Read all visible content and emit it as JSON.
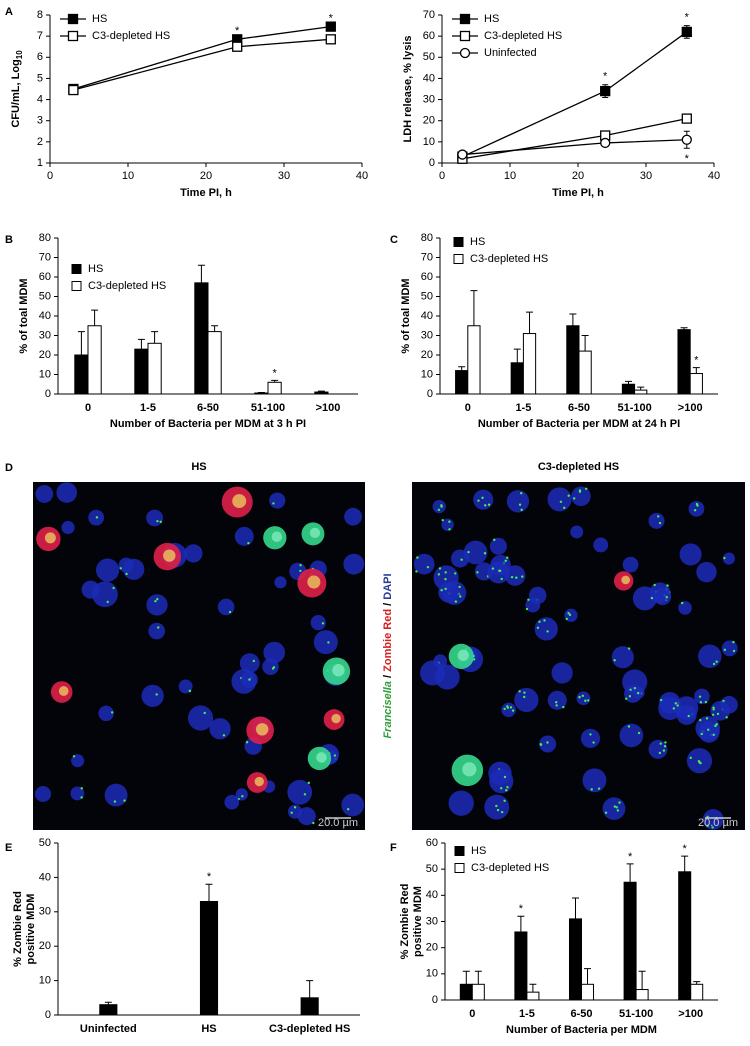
{
  "chart_data": [
    {
      "type": "line",
      "label": "A",
      "xlabel": "Time PI, h",
      "ylabel": "CFU/mL, Log",
      "ylabel_subscript": "10",
      "x": [
        3,
        24,
        36
      ],
      "xlim": [
        0,
        40
      ],
      "xticks": [
        0,
        10,
        20,
        30,
        40
      ],
      "ylim": [
        1,
        8
      ],
      "yticks": [
        1,
        2,
        3,
        4,
        5,
        6,
        7,
        8
      ],
      "legend": "upper left",
      "series": [
        {
          "name": "HS",
          "color": "#000000",
          "fill": "#000000",
          "marker": "square",
          "values": [
            4.5,
            6.85,
            7.45
          ],
          "annotations": [
            null,
            "*",
            "*"
          ]
        },
        {
          "name": "C3-depleted HS",
          "color": "#000000",
          "fill": "#ffffff",
          "marker": "square",
          "values": [
            4.45,
            6.5,
            6.85
          ]
        }
      ]
    },
    {
      "type": "line",
      "xlabel": "Time PI, h",
      "ylabel": "LDH release, % lysis",
      "x": [
        3,
        24,
        36
      ],
      "xlim": [
        0,
        40
      ],
      "xticks": [
        0,
        10,
        20,
        30,
        40
      ],
      "ylim": [
        0,
        70
      ],
      "yticks": [
        0,
        10,
        20,
        30,
        40,
        50,
        60,
        70
      ],
      "legend": "upper left",
      "series": [
        {
          "name": "HS",
          "color": "#000000",
          "fill": "#000000",
          "marker": "square",
          "values": [
            3,
            34,
            62
          ],
          "errors": [
            1,
            3,
            3
          ],
          "annotations": [
            null,
            "*",
            "*"
          ]
        },
        {
          "name": "C3-depleted HS",
          "color": "#000000",
          "fill": "#ffffff",
          "marker": "square",
          "values": [
            2,
            13,
            21
          ],
          "errors": [
            0.5,
            1.5,
            1
          ]
        },
        {
          "name": "Uninfected",
          "color": "#000000",
          "fill": "#ffffff",
          "marker": "circle",
          "values": [
            4,
            9.5,
            11
          ],
          "errors": [
            1.5,
            1,
            4
          ],
          "annotations": [
            null,
            null,
            "*"
          ]
        }
      ]
    },
    {
      "type": "bar",
      "label": "B",
      "xlabel": "Number of Bacteria per MDM at 3 h PI",
      "ylabel": "% of toal MDM",
      "categories": [
        "0",
        "1-5",
        "6-50",
        "51-100",
        ">100"
      ],
      "ylim": [
        0,
        80
      ],
      "yticks": [
        0,
        10,
        20,
        30,
        40,
        50,
        60,
        70,
        80
      ],
      "legend": "upper left",
      "series": [
        {
          "name": "HS",
          "color": "#000000",
          "fill": "#000000",
          "values": [
            20,
            23,
            57,
            0.5,
            1
          ],
          "errors": [
            12,
            5,
            9,
            0.3,
            0.5
          ]
        },
        {
          "name": "C3-depleted HS",
          "color": "#000000",
          "fill": "#ffffff",
          "values": [
            35,
            26,
            32,
            6,
            0
          ],
          "errors": [
            8,
            6,
            3,
            1,
            0
          ],
          "annotations": [
            null,
            null,
            null,
            "*",
            null
          ]
        }
      ]
    },
    {
      "type": "bar",
      "label": "C",
      "xlabel": "Number of Bacteria per MDM at 24 h PI",
      "ylabel": "% of toal MDM",
      "categories": [
        "0",
        "1-5",
        "6-50",
        "51-100",
        ">100"
      ],
      "ylim": [
        0,
        80
      ],
      "yticks": [
        0,
        10,
        20,
        30,
        40,
        50,
        60,
        70,
        80
      ],
      "legend": "upper left",
      "series": [
        {
          "name": "HS",
          "color": "#000000",
          "fill": "#000000",
          "values": [
            12,
            16,
            35,
            5,
            33
          ],
          "errors": [
            2,
            7,
            6,
            1.5,
            1
          ]
        },
        {
          "name": "C3-depleted HS",
          "color": "#000000",
          "fill": "#ffffff",
          "values": [
            35,
            31,
            22,
            2,
            10.5
          ],
          "errors": [
            18,
            11,
            8,
            1.5,
            3
          ],
          "annotations": [
            null,
            null,
            null,
            null,
            "*"
          ]
        }
      ]
    },
    {
      "type": "image",
      "label": "D",
      "panels": [
        {
          "title": "HS"
        },
        {
          "title": "C3-depleted HS"
        }
      ],
      "stain_label": [
        {
          "text": "Francisella",
          "color": "#2e9e3a"
        },
        {
          "text": "/",
          "color": "#000000"
        },
        {
          "text": "Zombie Red",
          "color": "#d42020"
        },
        {
          "text": "/",
          "color": "#000000"
        },
        {
          "text": "DAPI",
          "color": "#2a3a9a"
        }
      ],
      "scale_bar": "20.0 µm"
    },
    {
      "type": "bar",
      "label": "E",
      "ylabel": [
        "% Zombie Red",
        "positive MDM"
      ],
      "categories": [
        "Uninfected",
        "HS",
        "C3-depleted HS"
      ],
      "ylim": [
        0,
        50
      ],
      "yticks": [
        0,
        10,
        20,
        30,
        40,
        50
      ],
      "series": [
        {
          "color": "#000000",
          "fill": "#000000",
          "values": [
            3,
            33,
            5
          ],
          "errors": [
            0.7,
            5,
            5
          ],
          "annotations": [
            null,
            "*",
            null
          ]
        }
      ]
    },
    {
      "type": "bar",
      "label": "F",
      "xlabel": "Number of Bacteria per MDM",
      "ylabel": [
        "% Zombie Red",
        "positive MDM"
      ],
      "categories": [
        "0",
        "1-5",
        "6-50",
        "51-100",
        ">100"
      ],
      "ylim": [
        0,
        60
      ],
      "yticks": [
        0,
        10,
        20,
        30,
        40,
        50,
        60
      ],
      "legend": "upper left",
      "series": [
        {
          "name": "HS",
          "color": "#000000",
          "fill": "#000000",
          "values": [
            6,
            26,
            31,
            45,
            49
          ],
          "errors": [
            5,
            6,
            8,
            7,
            6
          ],
          "annotations": [
            null,
            "*",
            null,
            "*",
            "*"
          ]
        },
        {
          "name": "C3-depleted HS",
          "color": "#000000",
          "fill": "#ffffff",
          "values": [
            6,
            3,
            6,
            4,
            6
          ],
          "errors": [
            5,
            3,
            6,
            7,
            1
          ]
        }
      ]
    }
  ]
}
